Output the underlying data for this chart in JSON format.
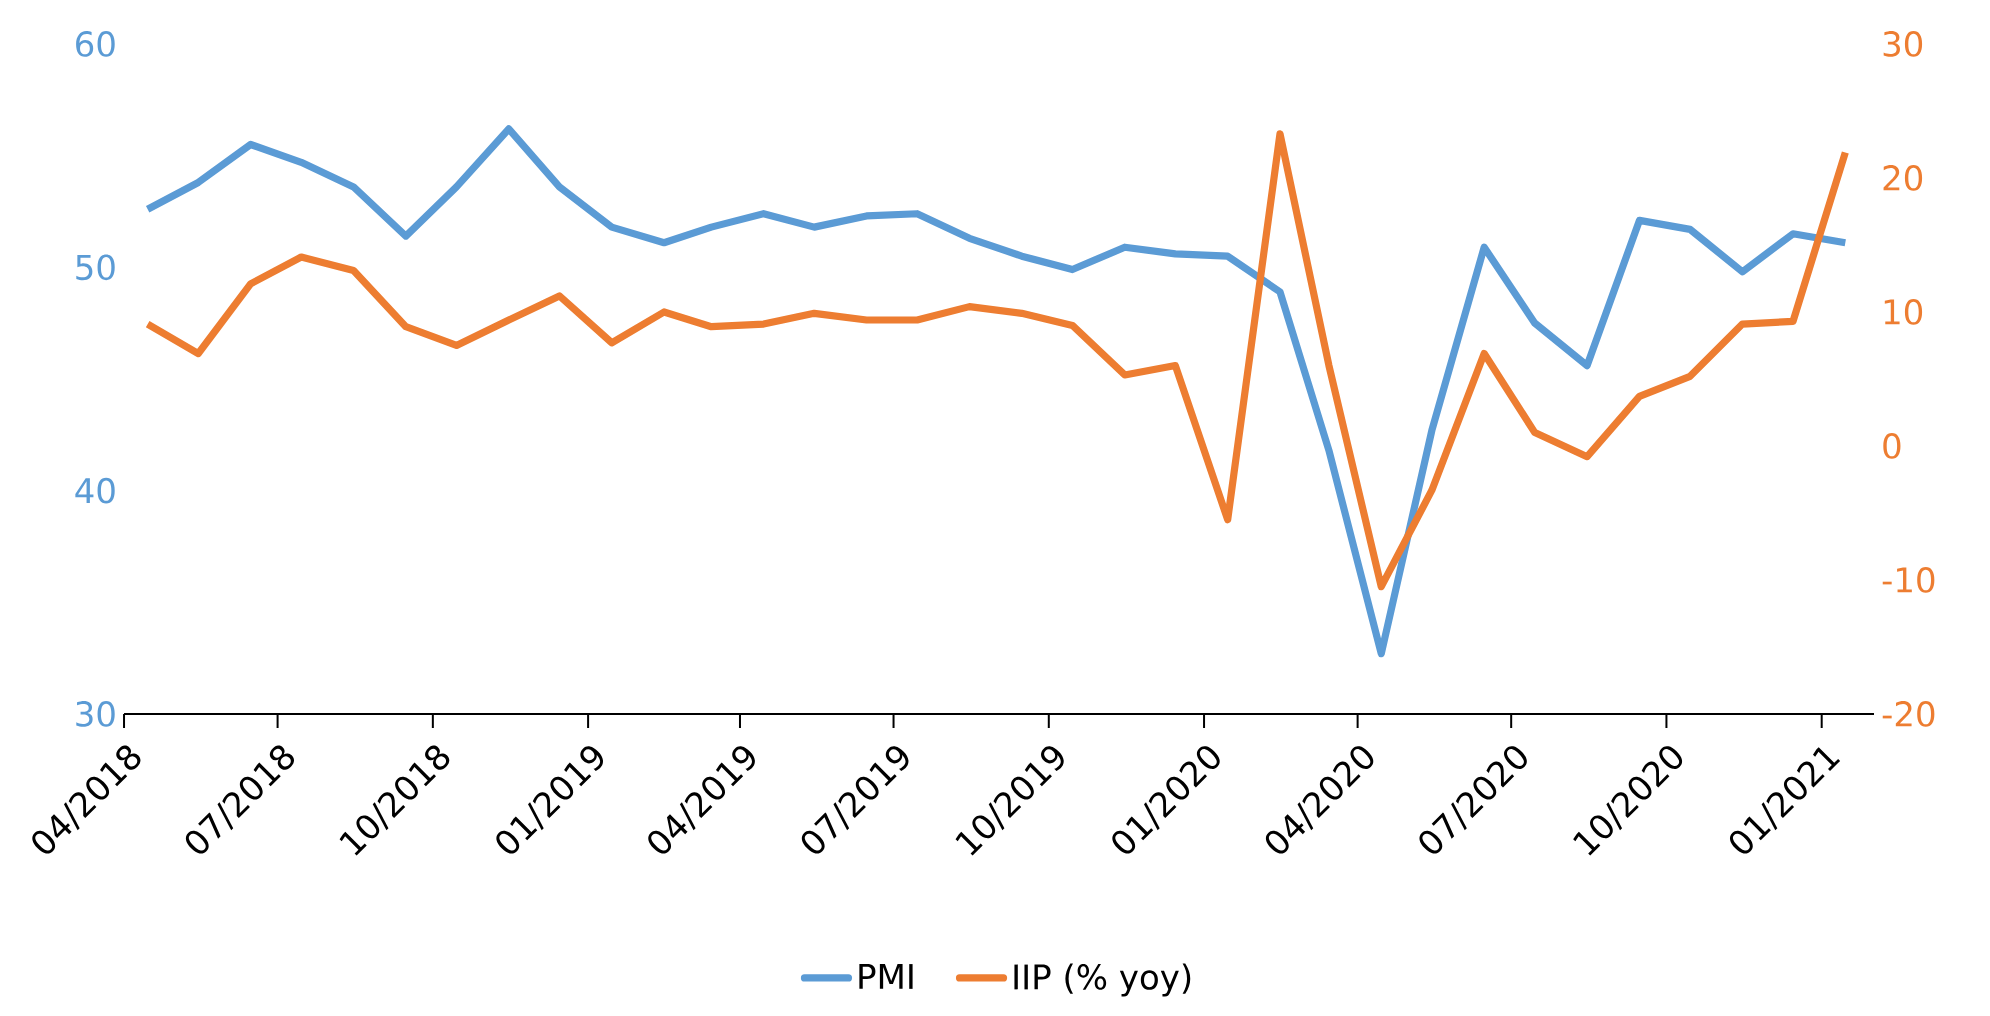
{
  "chart_data": {
    "type": "line",
    "x": [
      "2018-04-15",
      "2018-05-15",
      "2018-06-15",
      "2018-07-15",
      "2018-08-15",
      "2018-09-15",
      "2018-10-15",
      "2018-11-15",
      "2018-12-15",
      "2019-01-15",
      "2019-02-15",
      "2019-03-15",
      "2019-04-15",
      "2019-05-15",
      "2019-06-15",
      "2019-07-15",
      "2019-08-15",
      "2019-09-15",
      "2019-10-15",
      "2019-11-15",
      "2019-12-15",
      "2020-01-15",
      "2020-02-15",
      "2020-03-15",
      "2020-04-15",
      "2020-05-15",
      "2020-06-15",
      "2020-07-15",
      "2020-08-15",
      "2020-09-15",
      "2020-10-15",
      "2020-11-15",
      "2020-12-15",
      "2021-01-15"
    ],
    "series": [
      {
        "name": "PMI",
        "color": "#5b9bd5",
        "values": [
          52.6,
          53.8,
          55.5,
          54.7,
          53.6,
          51.4,
          53.6,
          56.2,
          53.6,
          51.8,
          51.1,
          51.8,
          52.4,
          51.8,
          52.3,
          52.4,
          51.3,
          50.5,
          49.9,
          50.9,
          50.6,
          50.5,
          48.9,
          41.8,
          32.7,
          42.7,
          50.9,
          47.5,
          45.6,
          52.1,
          51.7,
          49.8,
          51.5,
          51.1
        ]
      },
      {
        "name": "IIP (% yoy)",
        "color": "#ed7d31",
        "axis": "y2",
        "values": [
          9.1,
          6.9,
          12.1,
          14.1,
          13.1,
          8.9,
          7.5,
          9.4,
          11.2,
          7.7,
          10.0,
          8.9,
          9.1,
          9.9,
          9.4,
          9.4,
          10.4,
          9.9,
          9.0,
          5.3,
          6.0,
          -5.5,
          23.3,
          6.0,
          -10.5,
          -3.3,
          6.9,
          1.0,
          -0.8,
          3.7,
          5.2,
          9.1,
          9.3,
          21.9
        ]
      }
    ],
    "xlim": [
      "2018-04-01",
      "2021-02-01"
    ],
    "xticks": [
      {
        "value": "2018-04-01",
        "label": "04/2018"
      },
      {
        "value": "2018-07-01",
        "label": "07/2018"
      },
      {
        "value": "2018-10-01",
        "label": "10/2018"
      },
      {
        "value": "2019-01-01",
        "label": "01/2019"
      },
      {
        "value": "2019-04-01",
        "label": "04/2019"
      },
      {
        "value": "2019-07-01",
        "label": "07/2019"
      },
      {
        "value": "2019-10-01",
        "label": "10/2019"
      },
      {
        "value": "2020-01-01",
        "label": "01/2020"
      },
      {
        "value": "2020-04-01",
        "label": "04/2020"
      },
      {
        "value": "2020-07-01",
        "label": "07/2020"
      },
      {
        "value": "2020-10-01",
        "label": "10/2020"
      },
      {
        "value": "2021-01-01",
        "label": "01/2021"
      }
    ],
    "ylim": [
      30,
      60
    ],
    "yticks": [
      30,
      40,
      50,
      60
    ],
    "y2lim": [
      -20,
      30
    ],
    "y2ticks": [
      -20,
      -10,
      0,
      10,
      20,
      30
    ],
    "grid": false,
    "legend": "bottom",
    "marker": "none",
    "line_style": "solid"
  }
}
